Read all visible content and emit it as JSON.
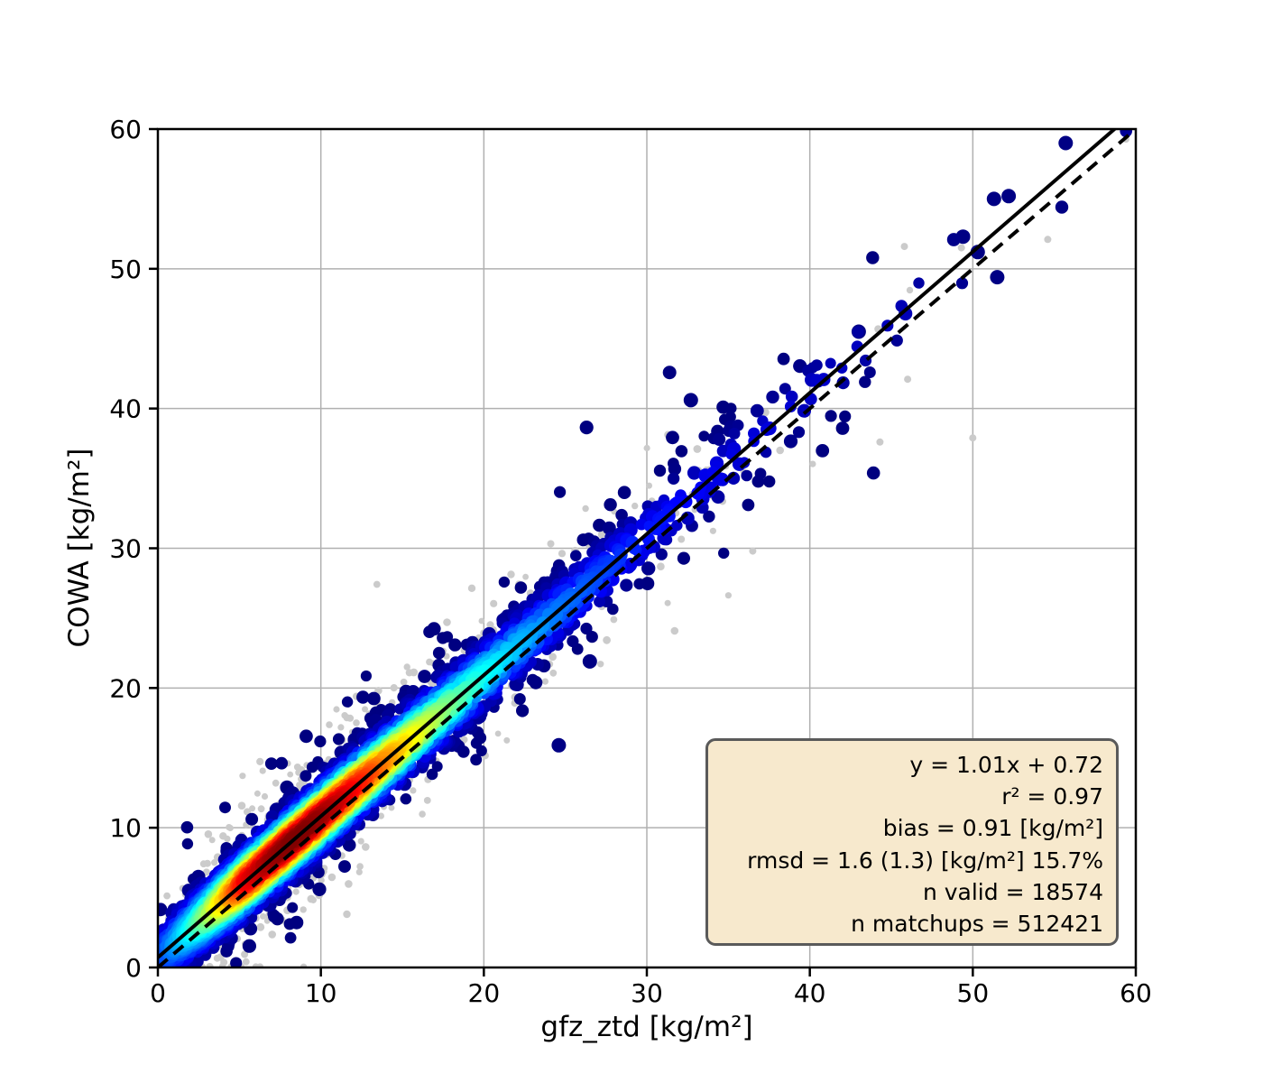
{
  "figure": {
    "background": "#ffffff"
  },
  "chart_data": {
    "type": "scatter",
    "subtype": "density-colored scatter (jet colormap) over gray background matchup points, with linear fit and 1:1 identity line",
    "title": "",
    "xlabel": "gfz_ztd [kg/m²]",
    "ylabel": "COWA [kg/m²]",
    "xlim": [
      0,
      60
    ],
    "ylim": [
      0,
      60
    ],
    "xticks": [
      0,
      10,
      20,
      30,
      40,
      50,
      60
    ],
    "yticks": [
      0,
      10,
      20,
      30,
      40,
      50,
      60
    ],
    "grid": true,
    "grid_color": "#b0b0b0",
    "spine_color": "#000000",
    "tick_color": "#000000",
    "colormap": "jet",
    "background_points_color": "#cbcbcb",
    "fit_line": {
      "label": "y = 1.01x + 0.72",
      "slope": 1.01,
      "intercept": 0.72,
      "color": "#000000",
      "style": "solid"
    },
    "identity_line": {
      "label": "1:1",
      "slope": 1.0,
      "intercept": 0.0,
      "color": "#000000",
      "style": "dashed"
    },
    "stats": {
      "equation": "y = 1.01x + 0.72",
      "r2": "r² = 0.97",
      "bias": "bias = 0.91 [kg/m²]",
      "rmsd": "rmsd = 1.6 (1.3) [kg/m²] 15.7%",
      "n_valid": "n valid = 18574",
      "n_matchups": "n matchups = 512421"
    },
    "stats_box": {
      "fill": "#f7e9cd",
      "border": "#5a5a5a"
    },
    "distribution": {
      "comment": "reconstruction parameters for the unlabeled point cloud; density peaks near x=6-12 (red core) and thins toward x=60 (navy)",
      "seed": 42,
      "n_colored": 4200,
      "n_background": 850,
      "x_gamma_scale": 5.5,
      "scatter_sigma": [
        1.1,
        0.02
      ],
      "background_sigma": [
        2.3,
        0.025
      ],
      "density_sigma": 1.15,
      "outlier_fraction": 0.045,
      "outlier_scale": 2.3,
      "notable_dense_points": [
        [
          55.7,
          59.0
        ],
        [
          51.3,
          55.0
        ],
        [
          52.2,
          55.2
        ],
        [
          49.4,
          52.3
        ],
        [
          51.5,
          49.4
        ],
        [
          50.3,
          51.2
        ],
        [
          43.0,
          45.5
        ],
        [
          32.7,
          40.6
        ],
        [
          24.6,
          15.9
        ],
        [
          26.5,
          21.9
        ]
      ],
      "notable_background_points": [
        [
          54.6,
          52.1
        ],
        [
          49.3,
          51.5
        ],
        [
          46.0,
          42.1
        ],
        [
          44.3,
          37.6
        ],
        [
          50.0,
          37.9
        ],
        [
          45.8,
          51.6
        ],
        [
          36.5,
          29.8
        ]
      ]
    }
  }
}
